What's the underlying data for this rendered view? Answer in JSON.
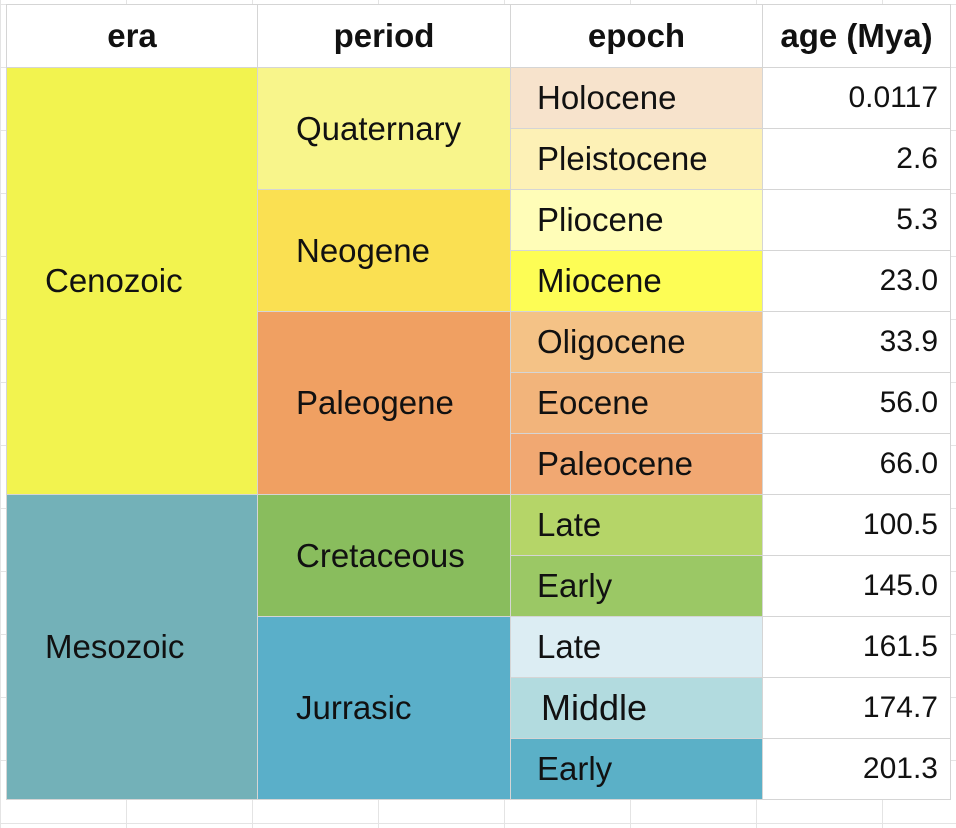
{
  "headers": {
    "era": "era",
    "period": "period",
    "epoch": "epoch",
    "age": "age (Mya)"
  },
  "eras": [
    {
      "name": "Cenozoic",
      "color": "#f2f34f"
    },
    {
      "name": "Mesozoic",
      "color": "#73b1b8"
    }
  ],
  "periods": [
    {
      "name": "Quaternary",
      "color": "#f8f58b"
    },
    {
      "name": "Neogene",
      "color": "#fae052"
    },
    {
      "name": "Paleogene",
      "color": "#f0a062"
    },
    {
      "name": "Cretaceous",
      "color": "#89bd5d"
    },
    {
      "name": "Jurrasic",
      "color": "#5aafc9"
    }
  ],
  "rows": [
    {
      "epoch": "Holocene",
      "age": "0.0117",
      "color": "#f7e3cc"
    },
    {
      "epoch": "Pleistocene",
      "age": "2.6",
      "color": "#fdf1b6"
    },
    {
      "epoch": "Pliocene",
      "age": "5.3",
      "color": "#fffdb8"
    },
    {
      "epoch": "Miocene",
      "age": "23.0",
      "color": "#fdfd55"
    },
    {
      "epoch": "Oligocene",
      "age": "33.9",
      "color": "#f4c286"
    },
    {
      "epoch": "Eocene",
      "age": "56.0",
      "color": "#f2b47b"
    },
    {
      "epoch": "Paleocene",
      "age": "66.0",
      "color": "#f1a872"
    },
    {
      "epoch": "Late",
      "age": "100.5",
      "color": "#b5d568"
    },
    {
      "epoch": "Early",
      "age": "145.0",
      "color": "#9bc865"
    },
    {
      "epoch": "Late",
      "age": "161.5",
      "color": "#dcedf3"
    },
    {
      "epoch": "Middle",
      "age": "174.7",
      "color": "#b2dbdf"
    },
    {
      "epoch": "Early",
      "age": "201.3",
      "color": "#5bb0c7"
    }
  ]
}
